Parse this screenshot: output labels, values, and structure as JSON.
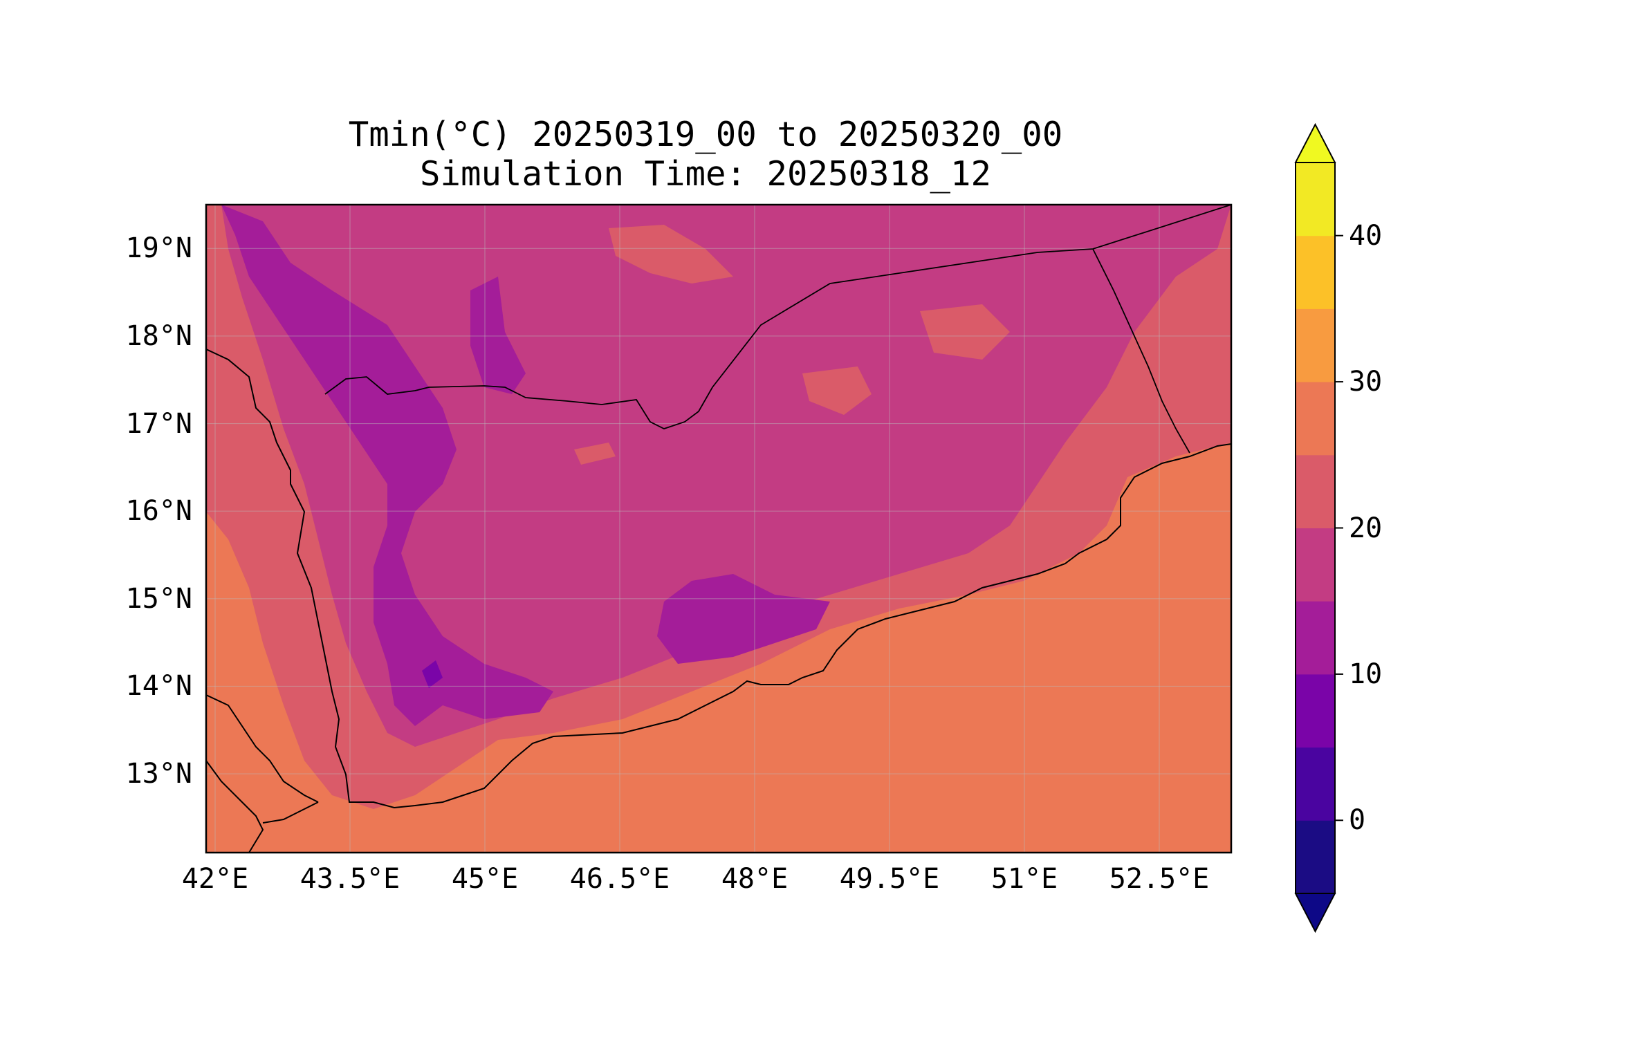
{
  "title": {
    "line1": "Tmin(°C) 20250319_00 to 20250320_00",
    "line2": "Simulation Time: 20250318_12"
  },
  "map": {
    "variable": "Tmin",
    "unit": "°C",
    "lon_range": [
      41.9,
      53.3
    ],
    "lat_range": [
      12.1,
      19.5
    ],
    "lon_ticks": [
      "42°E",
      "43.5°E",
      "45°E",
      "46.5°E",
      "48°E",
      "49.5°E",
      "51°E",
      "52.5°E"
    ],
    "lat_ticks": [
      "19°N",
      "18°N",
      "17°N",
      "16°N",
      "15°N",
      "14°N",
      "13°N"
    ],
    "gridlines": true
  },
  "colorbar": {
    "extend": "both",
    "levels": [
      -5,
      0,
      5,
      10,
      15,
      20,
      25,
      30,
      35,
      40,
      45
    ],
    "tick_labels": [
      "0",
      "10",
      "20",
      "30",
      "40"
    ],
    "tick_values": [
      0,
      10,
      20,
      30,
      40
    ],
    "colors": [
      "#1b0c84",
      "#4a04a0",
      "#7a04a8",
      "#a41d99",
      "#c33c83",
      "#da5b69",
      "#ec7855",
      "#f89b40",
      "#fcc128",
      "#f2e924"
    ],
    "under_color": "#0d0887",
    "over_color": "#f0f921"
  },
  "field_colors": {
    "sea": "#ec7855",
    "coastal_plain": "#ec7855",
    "lowland": "#da5b69",
    "plateau": "#c33c83",
    "highland": "#a41d99",
    "peak": "#7a04a8"
  }
}
